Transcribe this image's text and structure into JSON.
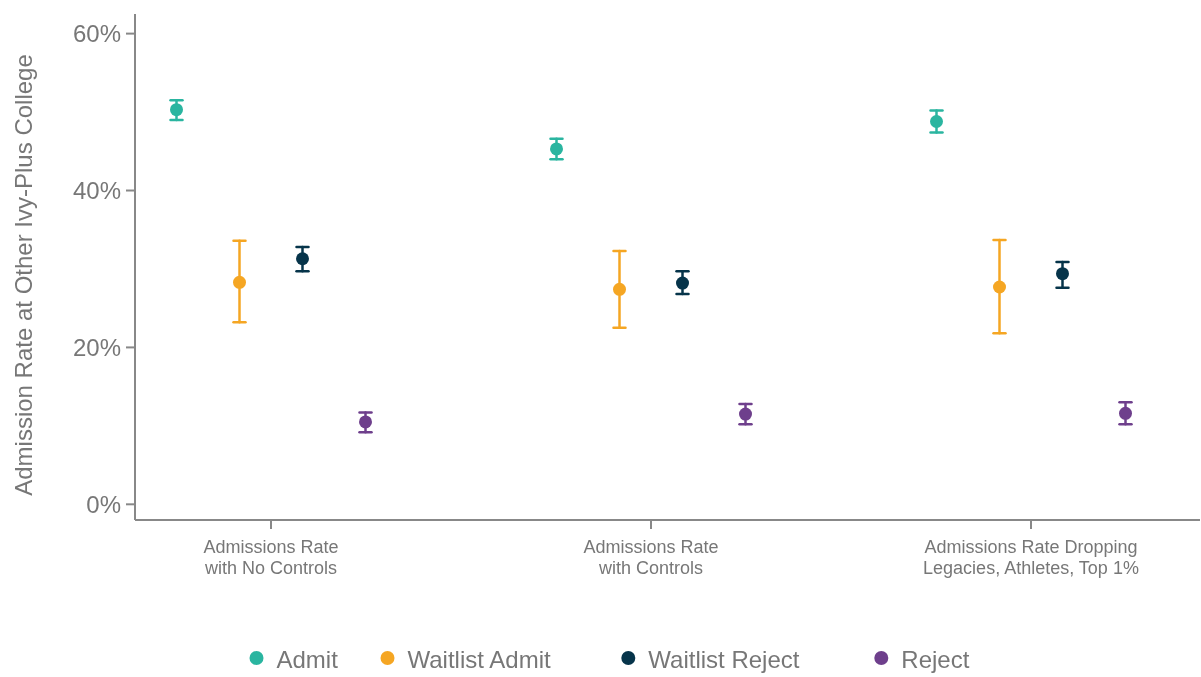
{
  "chart_data": {
    "type": "scatter",
    "ylabel": "Admission Rate at Other Ivy-Plus College",
    "categories": [
      "Admissions Rate\nwith No Controls",
      "Admissions Rate\nwith Controls",
      "Admissions Rate Dropping\nLegacies, Athletes, Top 1%"
    ],
    "series": [
      {
        "name": "Admit",
        "color": "#2ab5a0",
        "values": [
          50.3,
          45.3,
          48.8
        ],
        "errors": [
          [
            49.0,
            51.5
          ],
          [
            44.0,
            46.6
          ],
          [
            47.4,
            50.2
          ]
        ]
      },
      {
        "name": "Waitlist Admit",
        "color": "#f5a623",
        "values": [
          28.3,
          27.4,
          27.7
        ],
        "errors": [
          [
            23.2,
            33.6
          ],
          [
            22.5,
            32.3
          ],
          [
            21.8,
            33.7
          ]
        ]
      },
      {
        "name": "Waitlist Reject",
        "color": "#06344a",
        "values": [
          31.3,
          28.2,
          29.4
        ],
        "errors": [
          [
            29.7,
            32.8
          ],
          [
            26.8,
            29.7
          ],
          [
            27.6,
            30.9
          ]
        ]
      },
      {
        "name": "Reject",
        "color": "#6e3f8c",
        "values": [
          10.5,
          11.5,
          11.6
        ],
        "errors": [
          [
            9.2,
            11.7
          ],
          [
            10.2,
            12.8
          ],
          [
            10.2,
            13.0
          ]
        ]
      }
    ],
    "ylim": [
      -2,
      62.5
    ],
    "yticks": [
      {
        "value": 0,
        "label": "0%"
      },
      {
        "value": 20,
        "label": "20%"
      },
      {
        "value": 40,
        "label": "40%"
      },
      {
        "value": 60,
        "label": "60%"
      }
    ],
    "grid": false,
    "legend": "bottom",
    "marker": "circle"
  }
}
